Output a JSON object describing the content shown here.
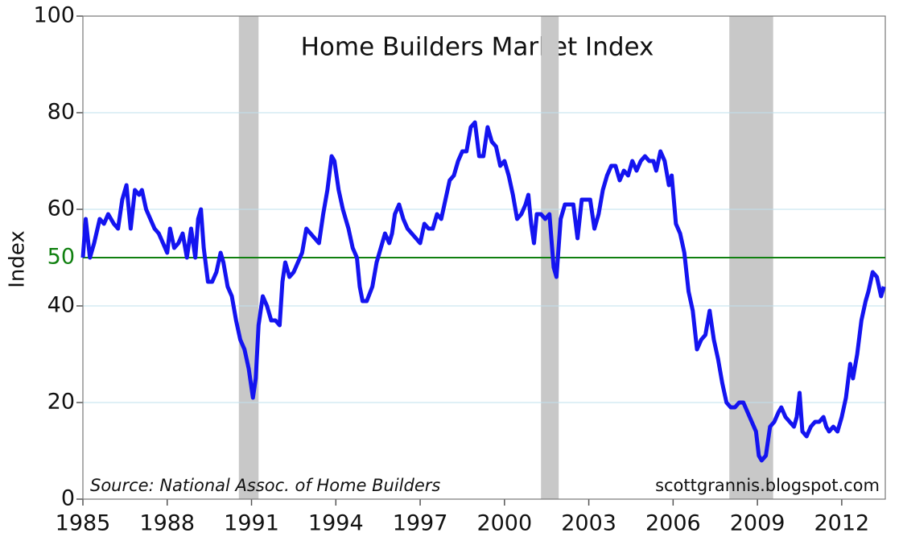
{
  "chart_data": {
    "type": "line",
    "title": "Home Builders Market Index",
    "y_label": "Index",
    "annotations": [
      "Source: National Assoc. of Home Builders",
      "scottgrannis.blogspot.com"
    ],
    "color": "#1414f0",
    "grid": true,
    "hline": {
      "value": 50,
      "color": "#108010"
    },
    "shaded_spans": [
      [
        1990.55,
        1991.25
      ],
      [
        2001.3,
        2001.93
      ],
      [
        2008.0,
        2009.56
      ]
    ],
    "xlim": [
      1985,
      2013.55
    ],
    "xticks": [
      1985,
      1988,
      1991,
      1994,
      1997,
      2000,
      2003,
      2006,
      2009,
      2012
    ],
    "ylim": [
      0,
      100
    ],
    "yticks": [
      0,
      20,
      40,
      60,
      80,
      100
    ],
    "x": [
      1985.0,
      1985.1,
      1985.25,
      1985.4,
      1985.6,
      1985.75,
      1985.9,
      1986.1,
      1986.25,
      1986.4,
      1986.55,
      1986.7,
      1986.85,
      1987.0,
      1987.1,
      1987.25,
      1987.4,
      1987.55,
      1987.7,
      1987.85,
      1988.0,
      1988.1,
      1988.25,
      1988.4,
      1988.55,
      1988.7,
      1988.85,
      1989.0,
      1989.1,
      1989.2,
      1989.3,
      1989.45,
      1989.6,
      1989.75,
      1989.9,
      1990.0,
      1990.15,
      1990.3,
      1990.45,
      1990.6,
      1990.75,
      1990.9,
      1991.05,
      1991.15,
      1991.25,
      1991.4,
      1991.55,
      1991.7,
      1991.85,
      1992.0,
      1992.1,
      1992.2,
      1992.35,
      1992.5,
      1992.65,
      1992.8,
      1992.95,
      1993.1,
      1993.25,
      1993.4,
      1993.55,
      1993.7,
      1993.85,
      1993.95,
      1994.1,
      1994.25,
      1994.45,
      1994.6,
      1994.75,
      1994.85,
      1994.95,
      1995.1,
      1995.3,
      1995.45,
      1995.6,
      1995.75,
      1995.9,
      1996.0,
      1996.1,
      1996.25,
      1996.4,
      1996.55,
      1996.7,
      1996.85,
      1997.0,
      1997.15,
      1997.3,
      1997.45,
      1997.6,
      1997.75,
      1997.9,
      1998.05,
      1998.2,
      1998.35,
      1998.5,
      1998.65,
      1998.8,
      1998.95,
      1999.1,
      1999.25,
      1999.4,
      1999.55,
      1999.7,
      1999.85,
      2000.0,
      2000.15,
      2000.3,
      2000.45,
      2000.6,
      2000.75,
      2000.85,
      2000.95,
      2001.05,
      2001.15,
      2001.3,
      2001.45,
      2001.6,
      2001.75,
      2001.85,
      2002.0,
      2002.15,
      2002.3,
      2002.45,
      2002.6,
      2002.75,
      2002.9,
      2003.05,
      2003.2,
      2003.35,
      2003.5,
      2003.65,
      2003.8,
      2003.95,
      2004.1,
      2004.25,
      2004.4,
      2004.55,
      2004.7,
      2004.85,
      2005.0,
      2005.15,
      2005.3,
      2005.4,
      2005.55,
      2005.7,
      2005.85,
      2005.95,
      2006.1,
      2006.25,
      2006.4,
      2006.55,
      2006.7,
      2006.85,
      2007.0,
      2007.15,
      2007.3,
      2007.45,
      2007.6,
      2007.75,
      2007.9,
      2008.05,
      2008.2,
      2008.35,
      2008.5,
      2008.65,
      2008.8,
      2008.95,
      2009.05,
      2009.15,
      2009.3,
      2009.45,
      2009.6,
      2009.75,
      2009.85,
      2010.0,
      2010.15,
      2010.3,
      2010.4,
      2010.5,
      2010.6,
      2010.75,
      2010.9,
      2011.05,
      2011.2,
      2011.35,
      2011.45,
      2011.55,
      2011.7,
      2011.85,
      2012.0,
      2012.15,
      2012.3,
      2012.4,
      2012.55,
      2012.7,
      2012.85,
      2012.95,
      2013.1,
      2013.25,
      2013.4,
      2013.5
    ],
    "values": [
      50,
      58,
      50,
      53,
      58,
      57,
      59,
      57,
      56,
      62,
      65,
      56,
      64,
      63,
      64,
      60,
      58,
      56,
      55,
      53,
      51,
      56,
      52,
      53,
      55,
      50,
      56,
      50,
      58,
      60,
      52,
      45,
      45,
      47,
      51,
      49,
      44,
      42,
      37,
      33,
      31,
      27,
      21,
      25,
      36,
      42,
      40,
      37,
      37,
      36,
      45,
      49,
      46,
      47,
      49,
      51,
      56,
      55,
      54,
      53,
      59,
      64,
      71,
      70,
      64,
      60,
      56,
      52,
      50,
      44,
      41,
      41,
      44,
      49,
      52,
      55,
      53,
      55,
      59,
      61,
      58,
      56,
      55,
      54,
      53,
      57,
      56,
      56,
      59,
      58,
      62,
      66,
      67,
      70,
      72,
      72,
      77,
      78,
      71,
      71,
      77,
      74,
      73,
      69,
      70,
      67,
      63,
      58,
      59,
      61,
      63,
      57,
      53,
      59,
      59,
      58,
      59,
      48,
      46,
      58,
      61,
      61,
      61,
      54,
      62,
      62,
      62,
      56,
      59,
      64,
      67,
      69,
      69,
      66,
      68,
      67,
      70,
      68,
      70,
      71,
      70,
      70,
      68,
      72,
      70,
      65,
      67,
      57,
      55,
      51,
      43,
      39,
      31,
      33,
      34,
      39,
      33,
      29,
      24,
      20,
      19,
      19,
      20,
      20,
      18,
      16,
      14,
      9,
      8,
      9,
      15,
      16,
      18,
      19,
      17,
      16,
      15,
      17,
      22,
      14,
      13,
      15,
      16,
      16,
      17,
      15,
      14,
      15,
      14,
      17,
      21,
      28,
      25,
      30,
      37,
      41,
      43,
      47,
      46,
      42,
      44
    ]
  }
}
